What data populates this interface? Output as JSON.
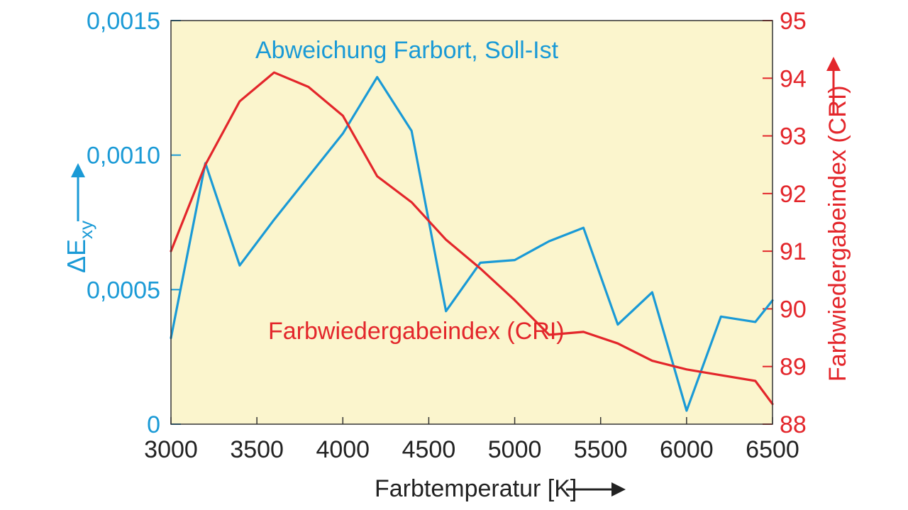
{
  "chart_data": {
    "type": "line",
    "title": "",
    "xlabel": "Farbtemperatur [K]",
    "xlim": [
      3000,
      6500
    ],
    "x_ticks": [
      "3000",
      "3500",
      "4000",
      "4500",
      "5000",
      "5500",
      "6000",
      "6500"
    ],
    "x_tick_values": [
      3000,
      3500,
      4000,
      4500,
      5000,
      5500,
      6000,
      6500
    ],
    "y_left": {
      "label_main": "ΔE",
      "label_sub": "xy",
      "lim": [
        0,
        0.0015
      ],
      "ticks": [
        "0",
        "0,0005",
        "0,0010",
        "0,0015"
      ],
      "tick_values": [
        0,
        0.0005,
        0.001,
        0.0015
      ]
    },
    "y_right": {
      "label": "Farbwiedergabeindex (CRI)",
      "lim": [
        88,
        95
      ],
      "ticks": [
        "88",
        "89",
        "90",
        "91",
        "92",
        "93",
        "94",
        "95"
      ],
      "tick_values": [
        88,
        89,
        90,
        91,
        92,
        93,
        94,
        95
      ]
    },
    "background_color": "#fbf5cd",
    "grid": "vertical and horizontal tick lines only",
    "series": [
      {
        "name": "Abweichung Farbort, Soll-Ist",
        "axis": "left",
        "color": "#1a9ad6",
        "x": [
          3000,
          3200,
          3400,
          3600,
          3800,
          4000,
          4200,
          4400,
          4600,
          4800,
          5000,
          5200,
          5400,
          5600,
          5800,
          6000,
          6200,
          6400,
          6500
        ],
        "values": [
          0.00032,
          0.00097,
          0.00059,
          0.00076,
          0.00092,
          0.00108,
          0.00129,
          0.00109,
          0.00042,
          0.0006,
          0.00061,
          0.00068,
          0.00073,
          0.00037,
          0.00049,
          5e-05,
          0.0004,
          0.00038,
          0.00046
        ]
      },
      {
        "name": "Farbwiedergabeindex (CRI)",
        "axis": "right",
        "color": "#e3262b",
        "x": [
          3000,
          3200,
          3400,
          3600,
          3800,
          4000,
          4200,
          4400,
          4600,
          4800,
          5000,
          5200,
          5400,
          5600,
          5800,
          6000,
          6200,
          6400,
          6500
        ],
        "values": [
          91.0,
          92.5,
          93.6,
          94.1,
          93.85,
          93.35,
          92.3,
          91.85,
          91.2,
          90.7,
          90.15,
          89.55,
          89.6,
          89.4,
          89.1,
          88.95,
          88.85,
          88.75,
          88.35
        ]
      }
    ]
  }
}
